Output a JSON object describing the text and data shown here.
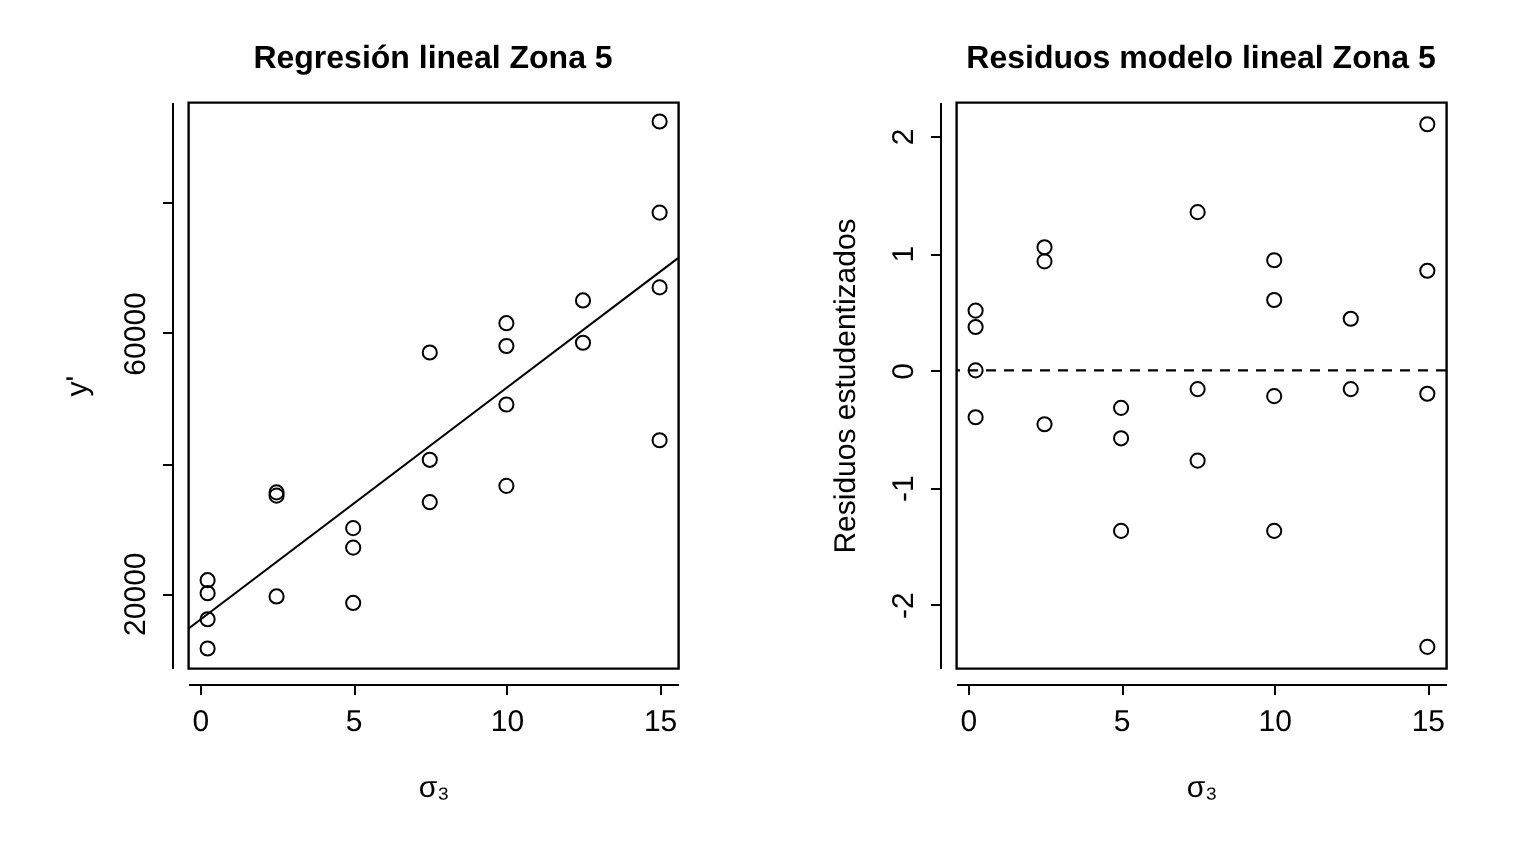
{
  "chart_data": [
    {
      "type": "scatter",
      "title": "Regresión lineal Zona 5",
      "xlabel": "σ₃",
      "ylabel": "y'",
      "grid": false,
      "xlim": [
        -0.39,
        15.6
      ],
      "ylim": [
        8500,
        95500
      ],
      "xticks": [
        0,
        5,
        10,
        15
      ],
      "yticks": [
        20000,
        {
          "value": 40000,
          "label": null
        },
        60000,
        {
          "value": 80000,
          "label": null
        }
      ],
      "series": [
        {
          "marker": "circle",
          "color": "#000000",
          "x": [
            0.25,
            0.25,
            0.25,
            0.25,
            2.5,
            2.5,
            2.5,
            5,
            5,
            5,
            7.5,
            7.5,
            7.5,
            10,
            10,
            10,
            10,
            12.5,
            12.5,
            15,
            15,
            15,
            15
          ],
          "values": [
            22000,
            20000,
            16000,
            11500,
            35500,
            35000,
            19500,
            30000,
            27000,
            18500,
            57000,
            40500,
            34000,
            61500,
            58000,
            49000,
            36500,
            65000,
            58500,
            92500,
            78500,
            67000,
            43500
          ]
        },
        {
          "type": "line",
          "color": "#000000",
          "x": [
            -0.39,
            15.6
          ],
          "values": [
            14500,
            71500
          ]
        }
      ]
    },
    {
      "type": "scatter",
      "title": "Residuos modelo lineal Zona 5",
      "xlabel": "σ₃",
      "ylabel": "Residuos estudentizados",
      "marker": "circle",
      "grid": false,
      "xlim": [
        -0.39,
        15.61
      ],
      "ylim": [
        -2.54,
        2.29
      ],
      "xticks": [
        0,
        5,
        10,
        15
      ],
      "yticks": [
        -2,
        -1,
        0,
        1,
        2
      ],
      "series": [
        {
          "color": "#000000",
          "x": [
            0.25,
            0.25,
            0.25,
            0.25,
            2.5,
            2.5,
            2.5,
            5,
            5,
            5,
            7.5,
            7.5,
            7.5,
            10,
            10,
            10,
            10,
            12.5,
            12.5,
            15,
            15,
            15,
            15
          ],
          "values": [
            0.51,
            0.37,
            0,
            -0.4,
            1.05,
            0.93,
            -0.46,
            -0.32,
            -0.58,
            -1.37,
            1.35,
            -0.16,
            -0.77,
            0.94,
            0.6,
            -0.22,
            -1.37,
            0.44,
            -0.16,
            2.1,
            0.85,
            -0.2,
            -2.36
          ]
        }
      ],
      "ref_lines": [
        {
          "axis": "y",
          "value": 0,
          "line_style": "dashed",
          "color": "#000000"
        }
      ]
    }
  ]
}
